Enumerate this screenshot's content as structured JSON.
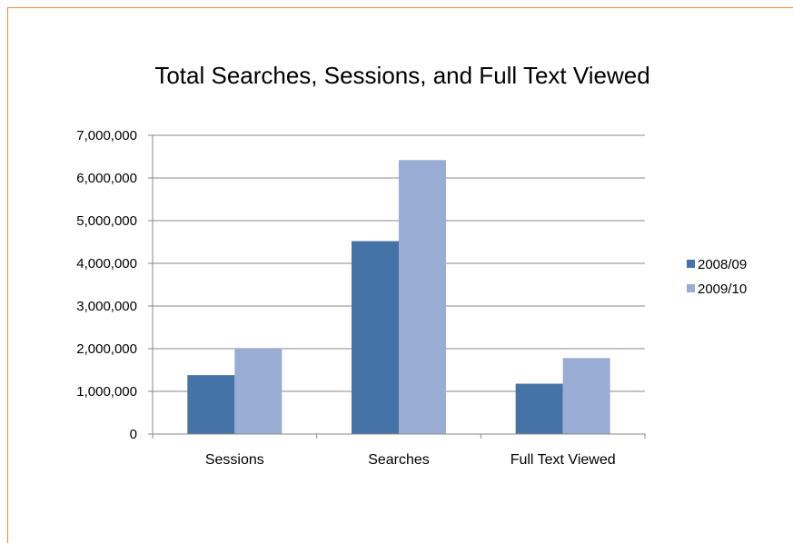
{
  "chart_data": {
    "type": "bar",
    "title": "Total Searches, Sessions, and Full Text Viewed",
    "categories": [
      "Sessions",
      "Searches",
      "Full Text Viewed"
    ],
    "series": [
      {
        "name": "2008/09",
        "values": [
          1380000,
          4520000,
          1180000
        ],
        "color": "#4572a7"
      },
      {
        "name": "2009/10",
        "values": [
          2000000,
          6420000,
          1780000
        ],
        "color": "#99acd3"
      }
    ],
    "ylim": [
      0,
      7000000
    ],
    "yticks": [
      "0",
      "1,000,000",
      "2,000,000",
      "3,000,000",
      "4,000,000",
      "5,000,000",
      "6,000,000",
      "7,000,000"
    ],
    "xlabel": "",
    "ylabel": "",
    "grid": true,
    "legend_position": "right",
    "frame_color": "#e69138",
    "grid_color": "#8a8a8a"
  }
}
